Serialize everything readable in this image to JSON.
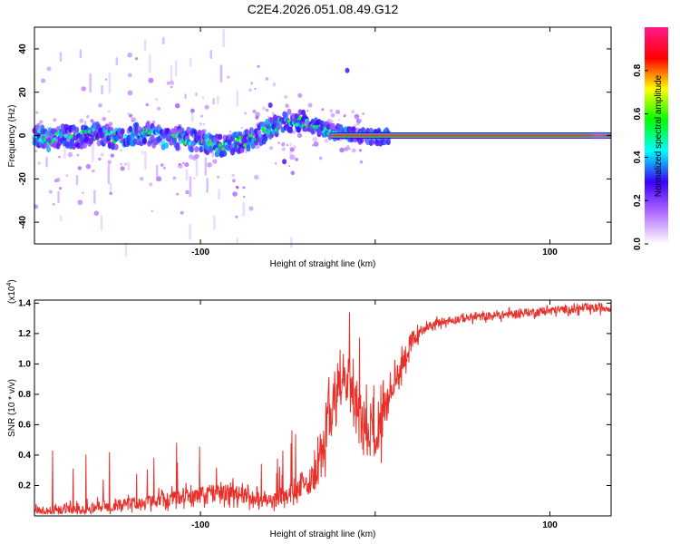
{
  "title": "C2E4.2026.051.08.49.G12",
  "colors": {
    "line": "#e8302a",
    "centerline": "#e53935",
    "background": "#ffffff",
    "axis": "#000000"
  },
  "chart_data": [
    {
      "type": "heatmap",
      "name": "spectrogram",
      "xlabel": "Height of straight line (km)",
      "ylabel": "Frequency (Hz)",
      "xlim": [
        -195,
        135
      ],
      "ylim": [
        -50,
        50
      ],
      "xticks": [
        -100,
        0,
        100
      ],
      "xtick_labels": [
        "-100",
        "",
        "100"
      ],
      "yticks": [
        -40,
        -20,
        0,
        20,
        40
      ],
      "ytick_labels": [
        "-40",
        "-20",
        "0",
        "20",
        "40"
      ],
      "trace_centers": [
        {
          "x": -190,
          "y": -3
        },
        {
          "x": -180,
          "y": 0
        },
        {
          "x": -170,
          "y": -1
        },
        {
          "x": -160,
          "y": 1
        },
        {
          "x": -150,
          "y": -1
        },
        {
          "x": -140,
          "y": 0
        },
        {
          "x": -130,
          "y": 1
        },
        {
          "x": -120,
          "y": -2
        },
        {
          "x": -110,
          "y": -1
        },
        {
          "x": -100,
          "y": -3
        },
        {
          "x": -90,
          "y": -5
        },
        {
          "x": -80,
          "y": -4
        },
        {
          "x": -70,
          "y": -1
        },
        {
          "x": -60,
          "y": 3
        },
        {
          "x": -50,
          "y": 7
        },
        {
          "x": -40,
          "y": 6
        },
        {
          "x": -30,
          "y": 3
        },
        {
          "x": -20,
          "y": 1
        },
        {
          "x": -10,
          "y": 0
        },
        {
          "x": 0,
          "y": -1
        },
        {
          "x": 10,
          "y": 0
        },
        {
          "x": 30,
          "y": 0
        },
        {
          "x": 60,
          "y": 0
        },
        {
          "x": 90,
          "y": 0
        },
        {
          "x": 120,
          "y": 0
        },
        {
          "x": 135,
          "y": 0
        }
      ],
      "colorbar": {
        "label": "Normalized spectral amplitude",
        "range": [
          0,
          1
        ],
        "ticks": [
          0.0,
          0.2,
          0.4,
          0.6,
          0.8
        ],
        "tick_labels": [
          "0.0",
          "0.2",
          "0.4",
          "0.6",
          "0.8"
        ],
        "colors": [
          "#ffffff",
          "#b26cff",
          "#3c00ff",
          "#00ffff",
          "#00ff00",
          "#ffff00",
          "#ff0000",
          "#ff1a8c"
        ]
      }
    },
    {
      "type": "line",
      "name": "snr",
      "xlabel": "Height of straight line (km)",
      "ylabel": "SNR (10 * v/v)",
      "scale_label": "(x10",
      "scale_exponent": "4",
      "scale_suffix": ")",
      "xlim": [
        -195,
        135
      ],
      "ylim": [
        0.0,
        1.42
      ],
      "xticks": [
        -100,
        0,
        100
      ],
      "xtick_labels": [
        "-100",
        "",
        "100"
      ],
      "yticks": [
        0.2,
        0.4,
        0.6,
        0.8,
        1.0,
        1.2,
        1.4
      ],
      "ytick_labels": [
        "0.2",
        "0.4",
        "0.6",
        "0.8",
        "1.0",
        "1.2",
        "1.4"
      ],
      "series": [
        {
          "name": "SNR",
          "x": [
            -195,
            -180,
            -160,
            -140,
            -120,
            -100,
            -90,
            -80,
            -70,
            -60,
            -50,
            -40,
            -33,
            -28,
            -24,
            -20,
            -16,
            -12,
            -8,
            -4,
            0,
            5,
            10,
            15,
            20,
            25,
            30,
            40,
            50,
            70,
            90,
            110,
            135
          ],
          "y": [
            0.03,
            0.04,
            0.06,
            0.08,
            0.11,
            0.14,
            0.16,
            0.15,
            0.12,
            0.1,
            0.13,
            0.2,
            0.35,
            0.55,
            0.75,
            0.85,
            0.9,
            0.75,
            0.6,
            0.55,
            0.6,
            0.7,
            0.85,
            1.0,
            1.12,
            1.2,
            1.25,
            1.28,
            1.3,
            1.32,
            1.34,
            1.36,
            1.37
          ]
        }
      ]
    }
  ]
}
